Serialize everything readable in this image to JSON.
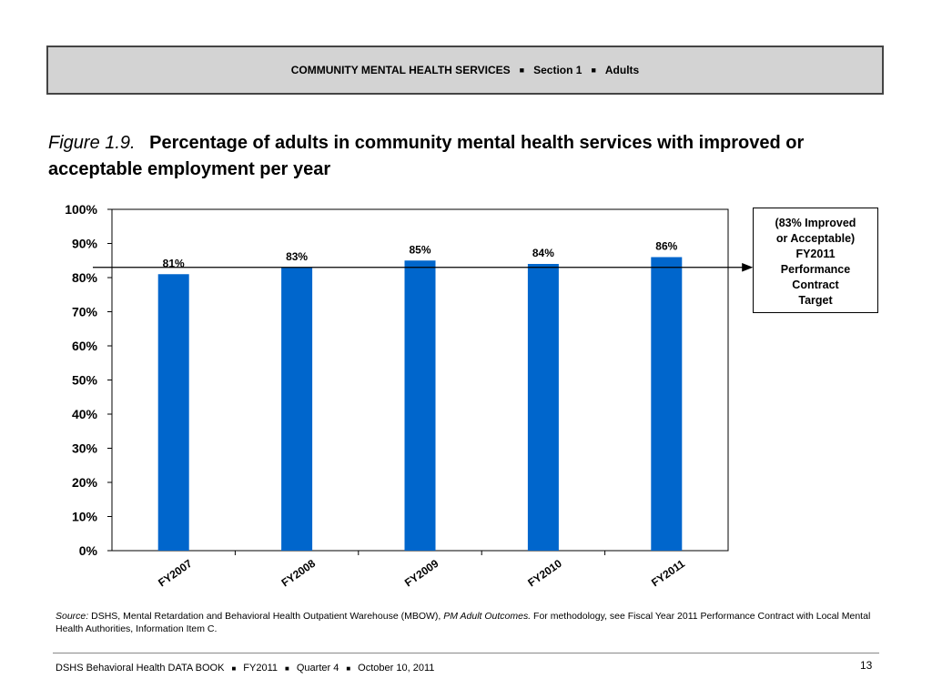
{
  "header": {
    "section_title": "COMMUNITY MENTAL HEALTH SERVICES",
    "separator": "■",
    "section": "Section 1",
    "subsection": "Adults"
  },
  "figure": {
    "label": "Figure 1.9.",
    "title": "Percentage of adults in community mental health services with improved or acceptable employment per year"
  },
  "chart_data": {
    "type": "bar",
    "categories": [
      "FY2007",
      "FY2008",
      "FY2009",
      "FY2010",
      "FY2011"
    ],
    "values": [
      81,
      83,
      85,
      84,
      86
    ],
    "value_labels": [
      "81%",
      "83%",
      "85%",
      "84%",
      "86%"
    ],
    "ylim": [
      0,
      100
    ],
    "yticks": [
      0,
      10,
      20,
      30,
      40,
      50,
      60,
      70,
      80,
      90,
      100
    ],
    "ytick_labels": [
      "0%",
      "10%",
      "20%",
      "30%",
      "40%",
      "50%",
      "60%",
      "70%",
      "80%",
      "90%",
      "100%"
    ],
    "target_value": 83,
    "bar_color": "#0066cc",
    "grid": false,
    "annotation": {
      "lines": [
        "(83% Improved",
        "or Acceptable)",
        "FY2011",
        "Performance",
        "Contract",
        "Target"
      ]
    }
  },
  "source": {
    "label": "Source:",
    "text_1": " DSHS, Mental Retardation and Behavioral Health Outpatient Warehouse (MBOW), ",
    "italic": "PM Adult Outcomes.",
    "text_2": " For methodology, see Fiscal Year 2011 Performance Contract with Local Mental Health Authorities, Information Item C."
  },
  "footer": {
    "book": "DSHS Behavioral Health DATA BOOK",
    "separator": "■",
    "fiscal_year": "FY2011",
    "quarter": "Quarter 4",
    "date": "October 10, 2011",
    "page_number": "13"
  }
}
